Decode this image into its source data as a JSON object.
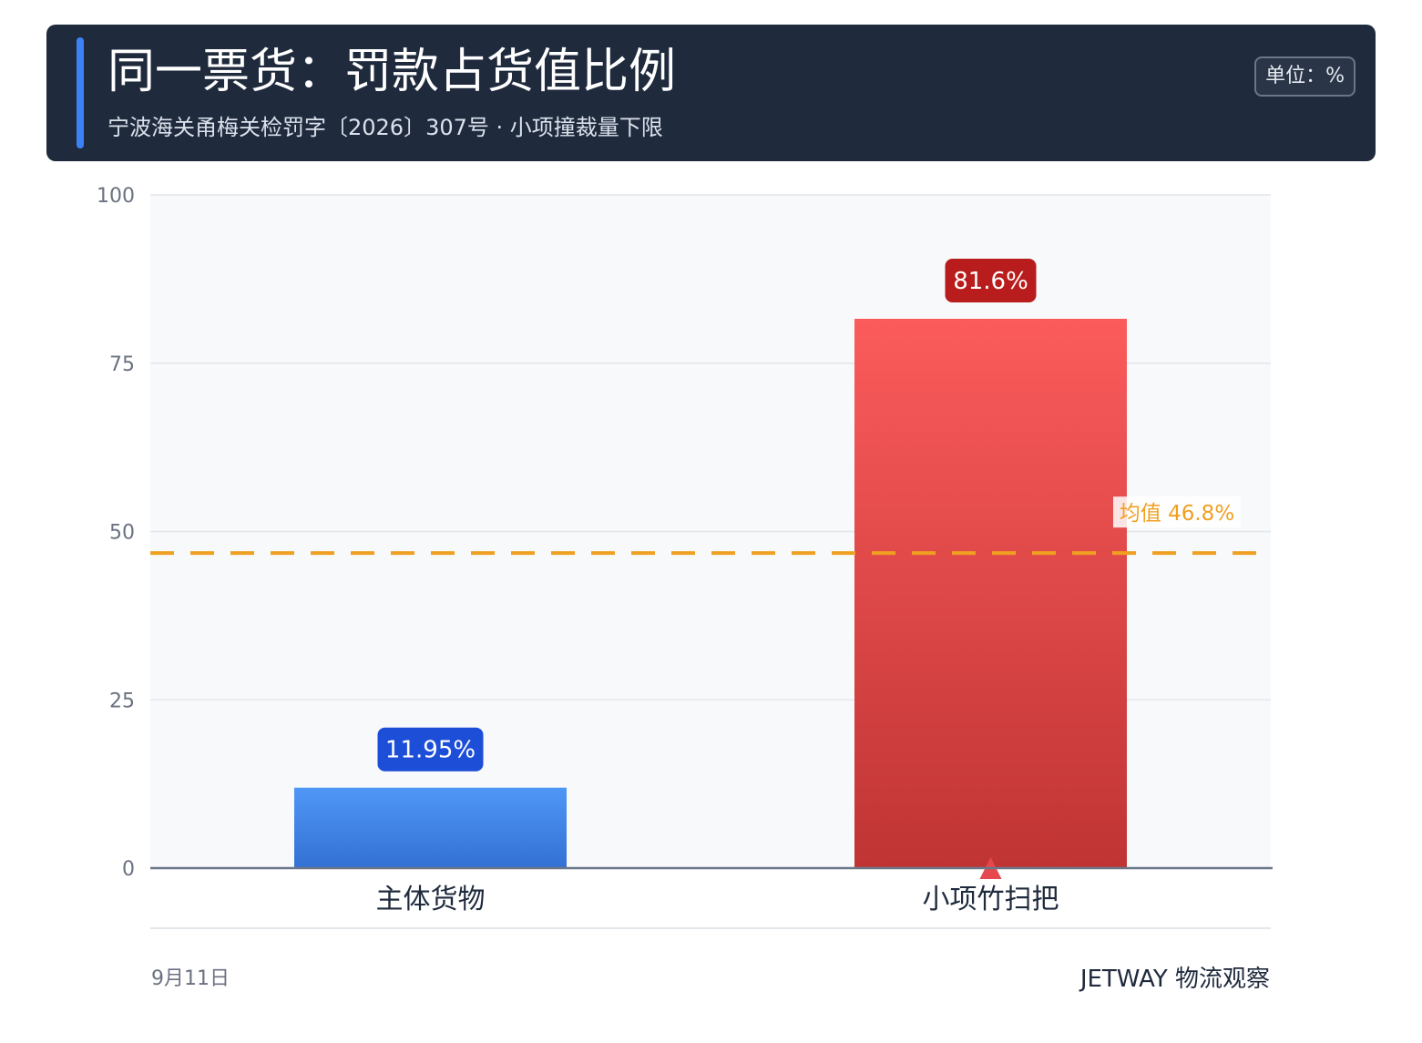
{
  "header": {
    "title": "同一票货：罚款占货值比例",
    "subtitle": "宁波海关甬梅关检罚字〔2026〕307号 · 小项撞裁量下限",
    "unit": "单位：%"
  },
  "footer": {
    "date": "9月11日",
    "brand": "JETWAY 物流观察"
  },
  "colors": {
    "header_bg": "#1f2a3d",
    "accent": "#3b82f6",
    "bar_blue_top": "#4f97f7",
    "bar_blue_bottom": "#3370d4",
    "bar_red_top": "#fb5b5b",
    "bar_red_bottom": "#c03434",
    "label_blue": "#1d4ed8",
    "label_red": "#b91c1c",
    "mean_line": "#f0a020",
    "plot_bg": "#f8f9fb"
  },
  "chart_data": {
    "type": "bar",
    "categories": [
      "主体货物",
      "小项竹扫把"
    ],
    "values": [
      11.95,
      81.6
    ],
    "value_labels": [
      "11.95%",
      "81.6%"
    ],
    "ylim": [
      0,
      100
    ],
    "yticks": [
      0,
      25,
      50,
      75,
      100
    ],
    "ytick_labels": [
      "0",
      "25",
      "50",
      "75",
      "100"
    ],
    "mean": {
      "value": 46.8,
      "label": "均值 46.8%"
    },
    "grid": true,
    "title": "",
    "xlabel": "",
    "ylabel": ""
  }
}
